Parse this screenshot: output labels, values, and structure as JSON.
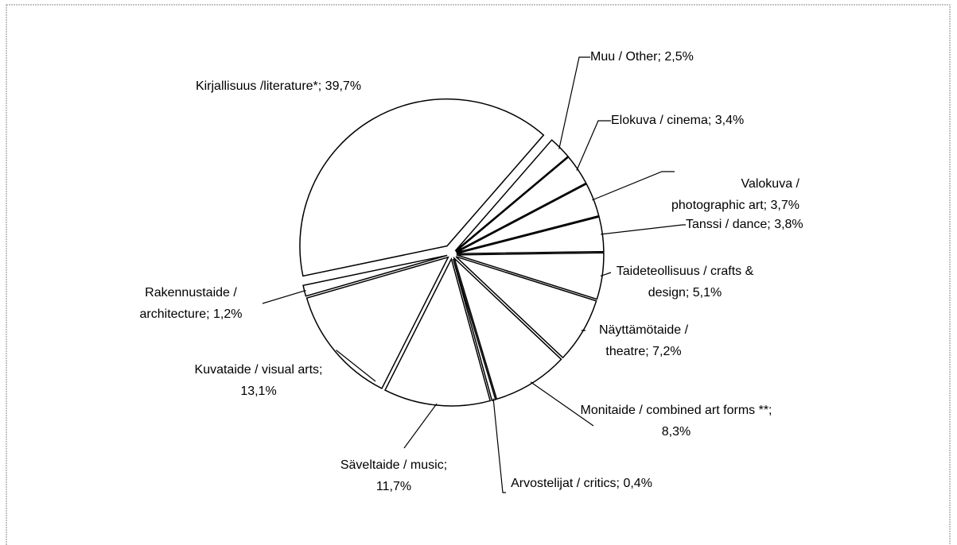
{
  "chart_data": {
    "type": "pie",
    "categories": [
      "Muu / Other;",
      "Elokuva / cinema;",
      "Valokuva / photographic art;",
      "Tanssi / dance;",
      "Taideteollisuus / crafts & design;",
      "Näyttämötaide / theatre;",
      "Monitaide / combined art forms **;",
      "Arvostelijat / critics;",
      "Säveltaide / music;",
      "Kuvataide / visual arts;",
      "Rakennustaide / architecture;",
      "Kirjallisuus /literature*;"
    ],
    "values": [
      2.5,
      3.4,
      3.7,
      3.8,
      5.1,
      7.2,
      8.3,
      0.4,
      11.7,
      13.1,
      1.2,
      39.7
    ],
    "value_labels": [
      "2,5%",
      "3,4%",
      "3,7%",
      "3,8%",
      "5,1%",
      "7,2%",
      "8,3%",
      "0,4%",
      "11,7%",
      "13,1%",
      "1,2%",
      "39,7%"
    ],
    "color": "#ffffff"
  }
}
